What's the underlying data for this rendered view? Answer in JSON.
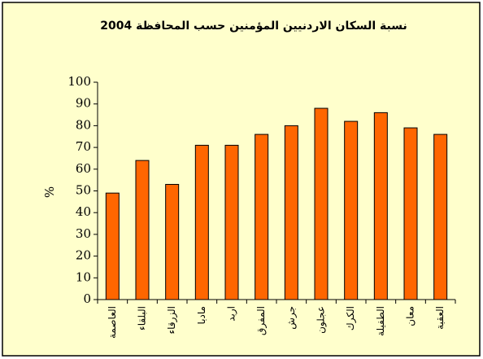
{
  "chart_data": {
    "type": "bar",
    "title": "نسبة السكان الاردنيين المؤمنين حسب المحافظة 2004",
    "y_label": "%",
    "categories": [
      "العاصمة",
      "البلقاء",
      "الزرقاء",
      "مادبا",
      "اربد",
      "المفرق",
      "جرش",
      "عجلون",
      "الكرك",
      "الطفيلة",
      "معان",
      "العقبة"
    ],
    "values": [
      49,
      64,
      53,
      71,
      71,
      76,
      80,
      88,
      82,
      86,
      79,
      76
    ],
    "color": "#ff6600",
    "ylim": [
      0,
      100
    ],
    "yticks": [
      0,
      10,
      20,
      30,
      40,
      50,
      60,
      70,
      80,
      90,
      100
    ],
    "grid": false
  }
}
